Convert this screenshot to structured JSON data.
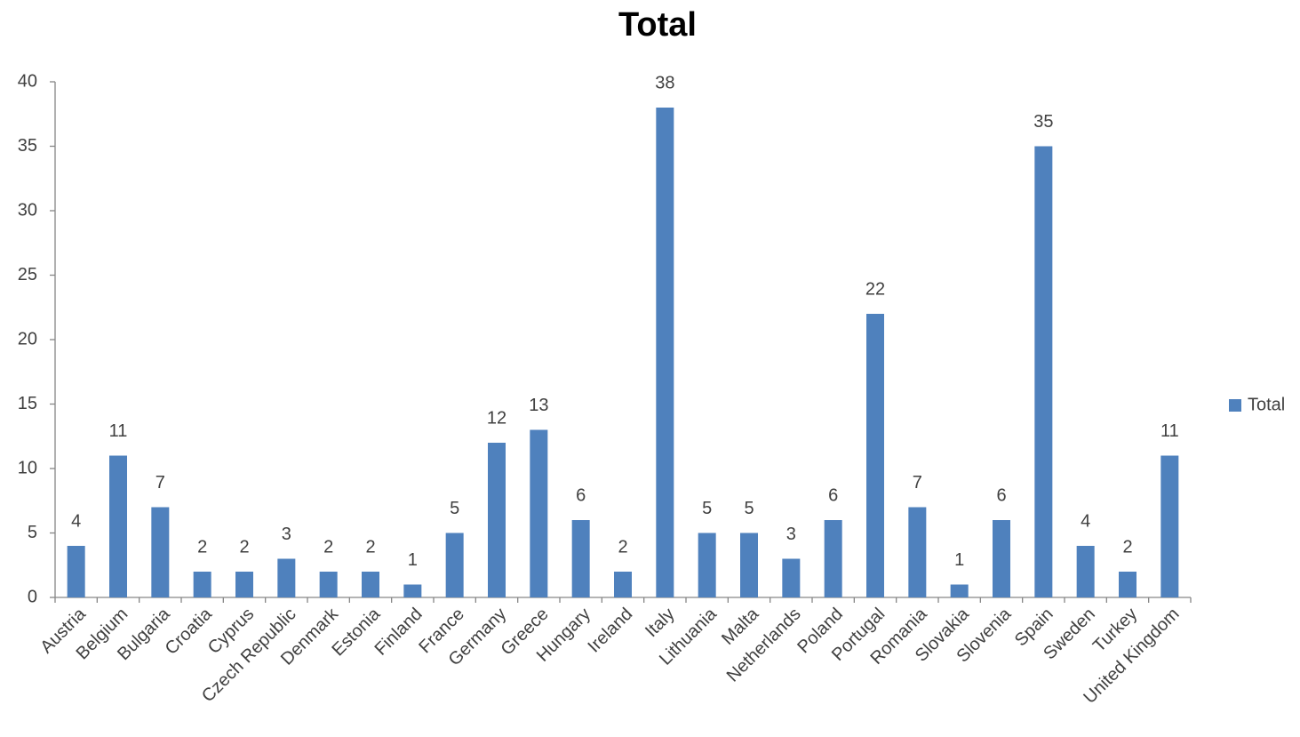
{
  "chart_data": {
    "type": "bar",
    "title": "Total",
    "categories": [
      "Austria",
      "Belgium",
      "Bulgaria",
      "Croatia",
      "Cyprus",
      "Czech Republic",
      "Denmark",
      "Estonia",
      "Finland",
      "France",
      "Germany",
      "Greece",
      "Hungary",
      "Ireland",
      "Italy",
      "Lithuania",
      "Malta",
      "Netherlands",
      "Poland",
      "Portugal",
      "Romania",
      "Slovakia",
      "Slovenia",
      "Spain",
      "Sweden",
      "Turkey",
      "United Kingdom"
    ],
    "series": [
      {
        "name": "Total",
        "color": "#4f81bd",
        "values": [
          4,
          11,
          7,
          2,
          2,
          3,
          2,
          2,
          1,
          5,
          12,
          13,
          6,
          2,
          38,
          5,
          5,
          3,
          6,
          22,
          7,
          1,
          6,
          35,
          4,
          2,
          11
        ]
      }
    ],
    "ylim": [
      0,
      40
    ],
    "yticks": [
      0,
      5,
      10,
      15,
      20,
      25,
      30,
      35,
      40
    ],
    "grid": false,
    "legend": "right"
  }
}
